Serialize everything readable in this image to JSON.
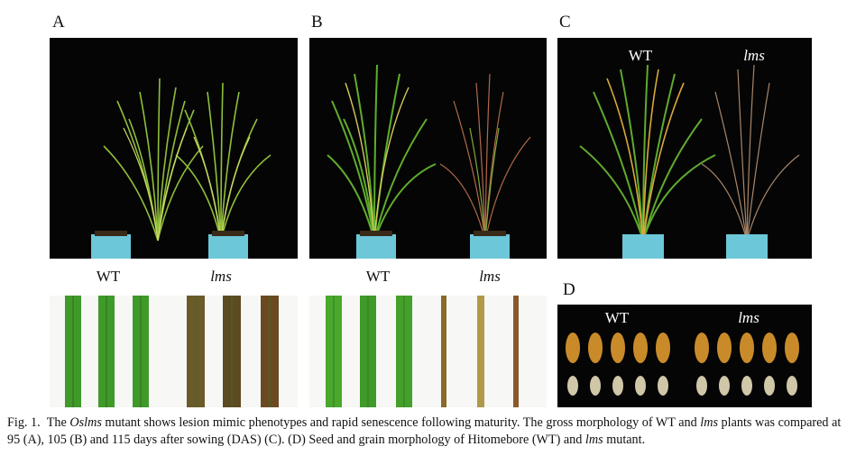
{
  "panels": {
    "A": {
      "label": "A",
      "left_label": "WT",
      "right_label": "lms"
    },
    "B": {
      "label": "B",
      "left_label": "WT",
      "right_label": "lms"
    },
    "C": {
      "label": "C",
      "left_label": "WT",
      "right_label": "lms"
    },
    "D": {
      "label": "D",
      "left_label": "WT",
      "right_label": "lms"
    }
  },
  "caption": {
    "fig": "Fig. 1.",
    "t1": "The ",
    "t2": "Oslms",
    "t3": " mutant shows lesion mimic phenotypes and rapid senescence following maturity.  The gross morphology of WT and ",
    "t4": "lms",
    "t5": " plants was compared at 95 (A), 105 (B) and 115 days after sowing (DAS) (C).  (D) Seed and grain morphology of Hitomebore (WT) and ",
    "t6": "lms",
    "t7": " mutant."
  },
  "colors": {
    "pot": "#6cc7d8",
    "leaf_green": "#3f9a2a",
    "leaf_yellow": "#b8c23a",
    "lesion_brown": "#6b4a22",
    "seed": "#c98b2a",
    "grain": "#cfc7a8"
  }
}
